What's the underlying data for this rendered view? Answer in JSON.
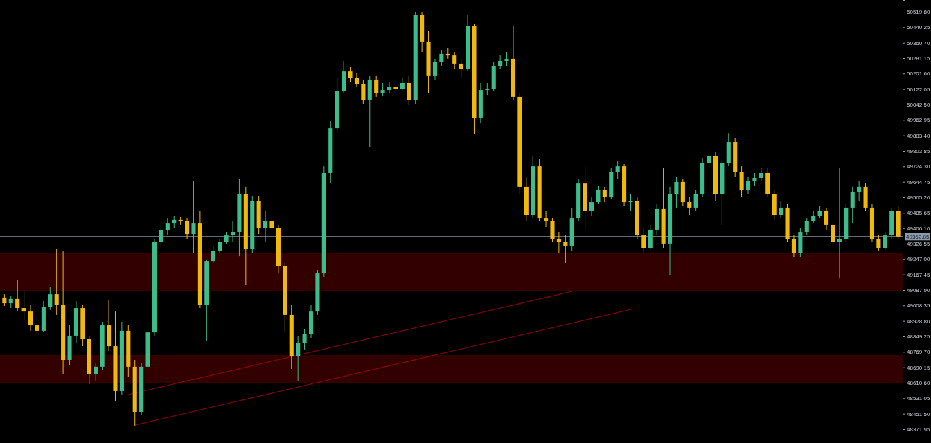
{
  "chart_data": {
    "type": "candlestick",
    "categories": [
      null,
      null,
      null,
      null,
      null,
      null,
      null,
      null,
      null,
      null,
      null,
      null,
      null,
      null,
      null,
      null,
      null,
      null,
      null,
      null,
      null,
      null,
      null,
      null,
      null,
      null,
      null,
      null,
      null,
      null,
      null,
      null,
      null,
      null,
      null,
      null,
      null,
      null,
      null,
      null,
      null,
      null,
      null,
      null,
      null,
      null,
      null,
      null,
      null,
      null,
      null,
      null,
      null,
      null,
      null,
      null,
      null,
      null,
      null,
      null,
      null,
      null,
      null,
      null,
      null,
      null,
      null,
      null,
      null,
      null,
      null,
      null,
      null,
      null,
      null,
      null,
      null,
      null,
      null,
      null,
      null,
      null,
      null,
      null,
      null,
      null,
      null,
      null,
      null,
      null,
      null,
      null,
      null,
      null,
      null,
      null,
      null,
      null,
      null,
      null,
      null,
      null,
      null,
      null,
      null,
      null,
      null,
      null,
      null,
      null,
      null,
      null,
      null,
      null,
      null,
      null,
      null,
      null,
      null,
      null,
      null,
      null,
      null,
      null,
      null,
      null,
      null,
      null,
      null,
      null,
      null,
      null,
      null,
      null,
      null,
      null,
      null,
      null
    ],
    "ohlc": [
      [
        49049,
        49066,
        49006,
        49020
      ],
      [
        49020,
        49056,
        48995,
        49042
      ],
      [
        49042,
        49138,
        48977,
        48995
      ],
      [
        48995,
        49084,
        48935,
        48977
      ],
      [
        48977,
        49013,
        48878,
        48906
      ],
      [
        48906,
        48960,
        48863,
        48878
      ],
      [
        48878,
        49031,
        48870,
        49002
      ],
      [
        49002,
        49102,
        48985,
        49066
      ],
      [
        49066,
        49298,
        48960,
        49013
      ],
      [
        49013,
        49287,
        48657,
        48728
      ],
      [
        48728,
        48906,
        48700,
        48853
      ],
      [
        48853,
        49031,
        48817,
        48995
      ],
      [
        48995,
        49013,
        48799,
        48835
      ],
      [
        48835,
        48853,
        48603,
        48657
      ],
      [
        48657,
        48710,
        48621,
        48693
      ],
      [
        48693,
        48924,
        48675,
        48906
      ],
      [
        48906,
        49038,
        48774,
        48799
      ],
      [
        48799,
        48977,
        48514,
        48568
      ],
      [
        48568,
        48924,
        48550,
        48878
      ],
      [
        48878,
        48906,
        48639,
        48693
      ],
      [
        48693,
        48728,
        48390,
        48461
      ],
      [
        48461,
        48710,
        48443,
        48693
      ],
      [
        48693,
        48906,
        48675,
        48870
      ],
      [
        48870,
        49351,
        48853,
        49334
      ],
      [
        49334,
        49423,
        49316,
        49394
      ],
      [
        49394,
        49458,
        49369,
        49433
      ],
      [
        49433,
        49469,
        49405,
        49448
      ],
      [
        49448,
        49465,
        49423,
        49441
      ],
      [
        49441,
        49458,
        49351,
        49376
      ],
      [
        49376,
        49647,
        49280,
        49433
      ],
      [
        49433,
        49494,
        48995,
        49013
      ],
      [
        49013,
        49245,
        48828,
        49237
      ],
      [
        49237,
        49316,
        49227,
        49291
      ],
      [
        49291,
        49351,
        49280,
        49334
      ],
      [
        49334,
        49387,
        49327,
        49369
      ],
      [
        49369,
        49441,
        49334,
        49387
      ],
      [
        49387,
        49661,
        49262,
        49583
      ],
      [
        49583,
        49619,
        49113,
        49298
      ],
      [
        49298,
        49572,
        49280,
        49547
      ],
      [
        49547,
        49572,
        49376,
        49405
      ],
      [
        49405,
        49494,
        49334,
        49441
      ],
      [
        49441,
        49547,
        49334,
        49405
      ],
      [
        49405,
        49423,
        49173,
        49209
      ],
      [
        49209,
        49227,
        48870,
        48960
      ],
      [
        48960,
        49013,
        48682,
        48746
      ],
      [
        48746,
        48853,
        48621,
        48817
      ],
      [
        48817,
        48888,
        48782,
        48860
      ],
      [
        48860,
        49013,
        48842,
        48977
      ],
      [
        48977,
        49191,
        48960,
        49173
      ],
      [
        49173,
        49725,
        49156,
        49690
      ],
      [
        49690,
        49957,
        49636,
        49921
      ],
      [
        49921,
        50178,
        49904,
        50110
      ],
      [
        50110,
        50267,
        50100,
        50213
      ],
      [
        50213,
        50235,
        50160,
        50181
      ],
      [
        50181,
        50206,
        50135,
        50146
      ],
      [
        50146,
        50171,
        50046,
        50064
      ],
      [
        50064,
        50189,
        49825,
        50171
      ],
      [
        50171,
        50189,
        50082,
        50100
      ],
      [
        50100,
        50153,
        50089,
        50117
      ],
      [
        50117,
        50160,
        50100,
        50135
      ],
      [
        50135,
        50171,
        50100,
        50124
      ],
      [
        50124,
        50181,
        50117,
        50153
      ],
      [
        50153,
        50189,
        50039,
        50064
      ],
      [
        50064,
        50520,
        50046,
        50502
      ],
      [
        50502,
        50516,
        50313,
        50367
      ],
      [
        50367,
        50420,
        50100,
        50189
      ],
      [
        50189,
        50278,
        50171,
        50260
      ],
      [
        50260,
        50324,
        50242,
        50303
      ],
      [
        50303,
        50331,
        50278,
        50295
      ],
      [
        50295,
        50313,
        50224,
        50253
      ],
      [
        50253,
        50278,
        50181,
        50224
      ],
      [
        50224,
        50502,
        50213,
        50445
      ],
      [
        50445,
        50456,
        49893,
        49975
      ],
      [
        49975,
        50153,
        49946,
        50117
      ],
      [
        50117,
        50153,
        50092,
        50124
      ],
      [
        50124,
        50260,
        50110,
        50242
      ],
      [
        50242,
        50295,
        50224,
        50267
      ],
      [
        50267,
        50313,
        50242,
        50278
      ],
      [
        50278,
        50445,
        50064,
        50082
      ],
      [
        50082,
        50100,
        49583,
        49619
      ],
      [
        49619,
        49672,
        49441,
        49476
      ],
      [
        49476,
        49779,
        49458,
        49725
      ],
      [
        49725,
        49761,
        49441,
        49458
      ],
      [
        49458,
        49494,
        49412,
        49441
      ],
      [
        49441,
        49458,
        49334,
        49351
      ],
      [
        49351,
        49387,
        49280,
        49334
      ],
      [
        49334,
        49369,
        49227,
        49316
      ],
      [
        49316,
        49512,
        49291,
        49458
      ],
      [
        49458,
        49661,
        49441,
        49636
      ],
      [
        49636,
        49725,
        49405,
        49494
      ],
      [
        49494,
        49565,
        49469,
        49540
      ],
      [
        49540,
        49626,
        49530,
        49601
      ],
      [
        49601,
        49619,
        49540,
        49565
      ],
      [
        49565,
        49715,
        49555,
        49697
      ],
      [
        49697,
        49750,
        49661,
        49725
      ],
      [
        49725,
        49736,
        49519,
        49540
      ],
      [
        49540,
        49583,
        49494,
        49547
      ],
      [
        49547,
        49565,
        49351,
        49369
      ],
      [
        49369,
        49405,
        49280,
        49305
      ],
      [
        49305,
        49423,
        49298,
        49398
      ],
      [
        49398,
        49530,
        49369,
        49505
      ],
      [
        49505,
        49718,
        49305,
        49327
      ],
      [
        49327,
        49619,
        49166,
        49583
      ],
      [
        49583,
        49672,
        49512,
        49644
      ],
      [
        49644,
        49661,
        49522,
        49540
      ],
      [
        49540,
        49565,
        49476,
        49512
      ],
      [
        49512,
        49601,
        49494,
        49583
      ],
      [
        49583,
        49768,
        49565,
        49743
      ],
      [
        49743,
        49815,
        49708,
        49779
      ],
      [
        49779,
        49797,
        49547,
        49583
      ],
      [
        49583,
        49761,
        49423,
        49743
      ],
      [
        49743,
        49896,
        49725,
        49850
      ],
      [
        49850,
        49868,
        49672,
        49697
      ],
      [
        49697,
        49725,
        49565,
        49601
      ],
      [
        49601,
        49672,
        49583,
        49647
      ],
      [
        49647,
        49690,
        49626,
        49665
      ],
      [
        49665,
        49715,
        49647,
        49690
      ],
      [
        49690,
        49715,
        49565,
        49583
      ],
      [
        49583,
        49601,
        49448,
        49476
      ],
      [
        49476,
        49547,
        49458,
        49512
      ],
      [
        49512,
        49530,
        49334,
        49351
      ],
      [
        49351,
        49369,
        49255,
        49280
      ],
      [
        49280,
        49405,
        49255,
        49387
      ],
      [
        49387,
        49458,
        49369,
        49441
      ],
      [
        49441,
        49494,
        49433,
        49469
      ],
      [
        49469,
        49519,
        49458,
        49494
      ],
      [
        49494,
        49512,
        49398,
        49423
      ],
      [
        49423,
        49441,
        49305,
        49334
      ],
      [
        49334,
        49715,
        49148,
        49351
      ],
      [
        49351,
        49530,
        49334,
        49512
      ],
      [
        49512,
        49619,
        49433,
        49590
      ],
      [
        49590,
        49647,
        49547,
        49619
      ],
      [
        49619,
        49636,
        49494,
        49512
      ],
      [
        49512,
        49530,
        49334,
        49351
      ],
      [
        49351,
        49369,
        49291,
        49305
      ],
      [
        49305,
        49387,
        49298,
        49369
      ],
      [
        49369,
        49512,
        49351,
        49494
      ],
      [
        49494,
        49519,
        49348,
        49362.85
      ]
    ],
    "colors": [
      "#f0b90b",
      "#3dbd8c",
      "#f0b90b",
      "#f0b90b",
      "#f0b90b",
      "#f0b90b",
      "#3dbd8c",
      "#3dbd8c",
      "#f0b90b",
      "#f0b90b",
      "#3dbd8c",
      "#3dbd8c",
      "#f0b90b",
      "#f0b90b",
      "#3dbd8c",
      "#3dbd8c",
      "#f0b90b",
      "#f0b90b",
      "#3dbd8c",
      "#f0b90b",
      "#f0b90b",
      "#3dbd8c",
      "#3dbd8c",
      "#3dbd8c",
      "#3dbd8c",
      "#3dbd8c",
      "#3dbd8c",
      "#f0b90b",
      "#f0b90b",
      "#3dbd8c",
      "#f0b90b",
      "#3dbd8c",
      "#3dbd8c",
      "#3dbd8c",
      "#3dbd8c",
      "#3dbd8c",
      "#3dbd8c",
      "#f0b90b",
      "#3dbd8c",
      "#f0b90b",
      "#3dbd8c",
      "#f0b90b",
      "#f0b90b",
      "#f0b90b",
      "#f0b90b",
      "#3dbd8c",
      "#3dbd8c",
      "#3dbd8c",
      "#3dbd8c",
      "#3dbd8c",
      "#3dbd8c",
      "#3dbd8c",
      "#3dbd8c",
      "#f0b90b",
      "#f0b90b",
      "#f0b90b",
      "#3dbd8c",
      "#f0b90b",
      "#3dbd8c",
      "#3dbd8c",
      "#f0b90b",
      "#3dbd8c",
      "#f0b90b",
      "#3dbd8c",
      "#f0b90b",
      "#f0b90b",
      "#3dbd8c",
      "#3dbd8c",
      "#f0b90b",
      "#f0b90b",
      "#f0b90b",
      "#3dbd8c",
      "#f0b90b",
      "#3dbd8c",
      "#3dbd8c",
      "#3dbd8c",
      "#3dbd8c",
      "#3dbd8c",
      "#f0b90b",
      "#f0b90b",
      "#f0b90b",
      "#3dbd8c",
      "#f0b90b",
      "#f0b90b",
      "#f0b90b",
      "#f0b90b",
      "#f0b90b",
      "#3dbd8c",
      "#3dbd8c",
      "#f0b90b",
      "#3dbd8c",
      "#3dbd8c",
      "#f0b90b",
      "#3dbd8c",
      "#3dbd8c",
      "#f0b90b",
      "#3dbd8c",
      "#f0b90b",
      "#f0b90b",
      "#3dbd8c",
      "#3dbd8c",
      "#f0b90b",
      "#3dbd8c",
      "#3dbd8c",
      "#f0b90b",
      "#f0b90b",
      "#3dbd8c",
      "#3dbd8c",
      "#3dbd8c",
      "#f0b90b",
      "#3dbd8c",
      "#3dbd8c",
      "#f0b90b",
      "#f0b90b",
      "#3dbd8c",
      "#3dbd8c",
      "#3dbd8c",
      "#f0b90b",
      "#f0b90b",
      "#3dbd8c",
      "#f0b90b",
      "#f0b90b",
      "#3dbd8c",
      "#3dbd8c",
      "#3dbd8c",
      "#3dbd8c",
      "#f0b90b",
      "#f0b90b",
      "#3dbd8c",
      "#3dbd8c",
      "#3dbd8c",
      "#3dbd8c",
      "#f0b90b",
      "#f0b90b",
      "#f0b90b",
      "#3dbd8c",
      "#3dbd8c",
      "#f0b90b"
    ],
    "series": [
      {
        "type": "line",
        "color": "#a00000",
        "values": [
          null,
          null,
          null,
          null,
          null,
          null,
          null,
          null,
          null,
          null,
          null,
          null,
          null,
          null,
          null,
          null,
          null,
          null,
          null,
          48550,
          null,
          null,
          null,
          null,
          null,
          null,
          null,
          null,
          null,
          null,
          null,
          null,
          null,
          null,
          null,
          null,
          null,
          null,
          null,
          null,
          null,
          null,
          null,
          null,
          null,
          null,
          null,
          null,
          null,
          null,
          null,
          null,
          null,
          null,
          null,
          null,
          null,
          null,
          null,
          null,
          null,
          null,
          null,
          null,
          null,
          null,
          null,
          null,
          null,
          null,
          null,
          null,
          null,
          null,
          null,
          null,
          null,
          null,
          null,
          null,
          null,
          null,
          null,
          null,
          null,
          null,
          null,
          49081,
          null,
          null,
          null,
          null,
          null,
          null,
          null,
          null,
          null,
          null,
          null,
          null,
          null,
          null,
          null,
          null,
          null,
          null,
          null,
          null,
          null,
          null,
          null,
          null,
          null,
          null,
          null,
          null,
          null,
          null,
          null,
          null,
          null,
          null,
          null,
          null,
          null,
          null,
          null,
          null,
          null,
          null,
          null,
          null,
          null,
          null,
          null,
          null,
          null,
          null
        ]
      },
      {
        "type": "line",
        "color": "#a00000",
        "values": [
          null,
          null,
          null,
          null,
          null,
          null,
          null,
          null,
          null,
          null,
          null,
          null,
          null,
          null,
          null,
          null,
          null,
          null,
          null,
          null,
          48393,
          null,
          null,
          null,
          null,
          null,
          null,
          null,
          null,
          null,
          null,
          null,
          null,
          null,
          null,
          null,
          null,
          null,
          null,
          null,
          null,
          null,
          null,
          null,
          null,
          null,
          null,
          null,
          null,
          null,
          null,
          null,
          null,
          null,
          null,
          null,
          null,
          null,
          null,
          null,
          null,
          null,
          null,
          null,
          null,
          null,
          null,
          null,
          null,
          null,
          null,
          null,
          null,
          null,
          null,
          null,
          null,
          null,
          null,
          null,
          null,
          null,
          null,
          null,
          null,
          null,
          null,
          null,
          null,
          null,
          null,
          null,
          null,
          null,
          null,
          null,
          48988,
          null,
          null,
          null,
          null,
          null,
          null,
          null,
          null,
          null,
          null,
          null,
          null,
          null,
          null,
          null,
          null,
          null,
          null,
          null,
          null,
          null,
          null,
          null,
          null,
          null,
          null,
          null,
          null,
          null,
          null,
          null,
          null,
          null,
          null,
          null,
          null,
          null,
          null,
          null,
          null,
          null
        ]
      }
    ],
    "ylim": [
      48300.6,
      50580.4
    ],
    "yticks": [
      {
        "value": 50519.8,
        "label": "50519.80"
      },
      {
        "value": 50440.25,
        "label": "50440.25"
      },
      {
        "value": 50360.7,
        "label": "50360.70"
      },
      {
        "value": 50281.15,
        "label": "50281.15"
      },
      {
        "value": 50201.6,
        "label": "50201.60"
      },
      {
        "value": 50122.05,
        "label": "50122.05"
      },
      {
        "value": 50042.5,
        "label": "50042.50"
      },
      {
        "value": 49962.95,
        "label": "49962.95"
      },
      {
        "value": 49883.4,
        "label": "49883.40"
      },
      {
        "value": 49803.85,
        "label": "49803.85"
      },
      {
        "value": 49724.3,
        "label": "49724.30"
      },
      {
        "value": 49644.75,
        "label": "49644.75"
      },
      {
        "value": 49565.2,
        "label": "49565.20"
      },
      {
        "value": 49485.65,
        "label": "49485.65"
      },
      {
        "value": 49406.1,
        "label": "49406.10"
      },
      {
        "value": 49326.55,
        "label": "49326.55"
      },
      {
        "value": 49247,
        "label": "49247.00"
      },
      {
        "value": 49167.45,
        "label": "49167.45"
      },
      {
        "value": 49087.9,
        "label": "49087.90"
      },
      {
        "value": 49008.35,
        "label": "49008.35"
      },
      {
        "value": 48928.8,
        "label": "48928.80"
      },
      {
        "value": 48849.25,
        "label": "48849.25"
      },
      {
        "value": 48769.7,
        "label": "48769.70"
      },
      {
        "value": 48690.15,
        "label": "48690.15"
      },
      {
        "value": 48610.6,
        "label": "48610.60"
      },
      {
        "value": 48531.05,
        "label": "48531.05"
      },
      {
        "value": 48451.5,
        "label": "48451.50"
      },
      {
        "value": 48371.95,
        "label": "48371.95"
      }
    ],
    "tick_labels": "y",
    "ref_lines": [
      {
        "axis": "y",
        "value": 49362.85,
        "label": "49362.85",
        "color": "#8a9aab"
      }
    ],
    "bands": [
      {
        "axis": "y",
        "from": 49081,
        "to": 49280,
        "color": "#330000"
      },
      {
        "axis": "y",
        "from": 48610,
        "to": 48753,
        "color": "#330000"
      }
    ]
  }
}
